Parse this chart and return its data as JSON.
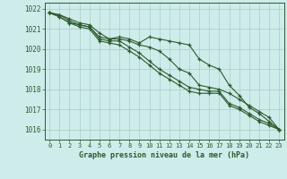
{
  "title": "Graphe pression niveau de la mer (hPa)",
  "background_color": "#ceecea",
  "grid_color": "#aaccc8",
  "line_color": "#2d5a2d",
  "xlim": [
    -0.5,
    23.5
  ],
  "ylim": [
    1015.5,
    1022.3
  ],
  "yticks": [
    1016,
    1017,
    1018,
    1019,
    1020,
    1021,
    1022
  ],
  "xticks": [
    0,
    1,
    2,
    3,
    4,
    5,
    6,
    7,
    8,
    9,
    10,
    11,
    12,
    13,
    14,
    15,
    16,
    17,
    18,
    19,
    20,
    21,
    22,
    23
  ],
  "series": [
    [
      1021.8,
      1021.7,
      1021.5,
      1021.3,
      1021.2,
      1020.8,
      1020.5,
      1020.5,
      1020.4,
      1020.2,
      1020.1,
      1019.9,
      1019.5,
      1019.0,
      1018.8,
      1018.2,
      1018.1,
      1018.0,
      1017.8,
      1017.5,
      1017.2,
      1016.9,
      1016.6,
      1016.0
    ],
    [
      1021.8,
      1021.7,
      1021.4,
      1021.2,
      1021.1,
      1020.6,
      1020.5,
      1020.6,
      1020.5,
      1020.3,
      1020.6,
      1020.5,
      1020.4,
      1020.3,
      1020.2,
      1019.5,
      1019.2,
      1019.0,
      1018.2,
      1017.7,
      1017.1,
      1016.8,
      1016.4,
      1016.0
    ],
    [
      1021.8,
      1021.6,
      1021.3,
      1021.2,
      1021.1,
      1020.5,
      1020.4,
      1020.4,
      1020.1,
      1019.8,
      1019.4,
      1019.0,
      1018.7,
      1018.4,
      1018.1,
      1018.0,
      1017.9,
      1017.9,
      1017.3,
      1017.1,
      1016.8,
      1016.5,
      1016.3,
      1016.0
    ],
    [
      1021.8,
      1021.6,
      1021.3,
      1021.1,
      1021.0,
      1020.4,
      1020.3,
      1020.2,
      1019.9,
      1019.6,
      1019.2,
      1018.8,
      1018.5,
      1018.2,
      1017.9,
      1017.8,
      1017.8,
      1017.8,
      1017.2,
      1017.0,
      1016.7,
      1016.4,
      1016.2,
      1016.0
    ]
  ]
}
